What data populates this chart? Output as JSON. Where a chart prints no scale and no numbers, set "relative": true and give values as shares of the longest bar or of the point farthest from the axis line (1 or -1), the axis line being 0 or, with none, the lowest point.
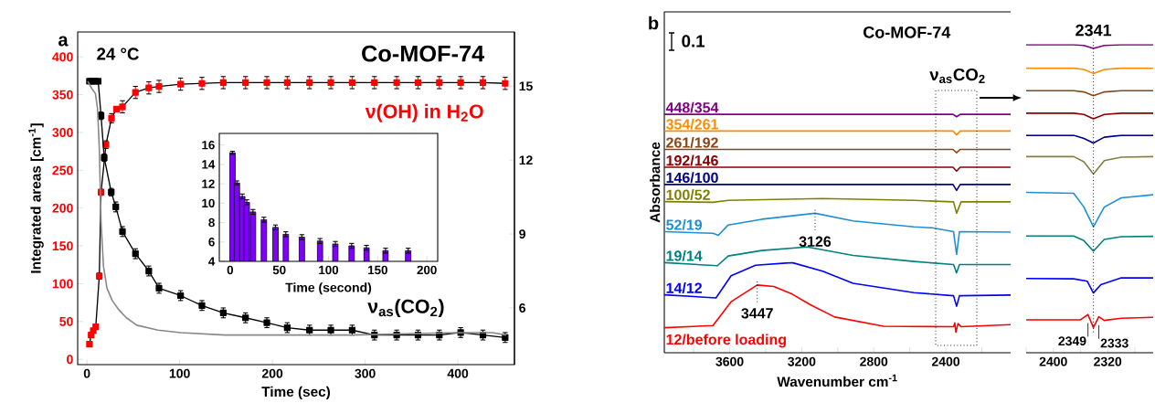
{
  "chart_data": [
    {
      "type": "line",
      "title": "Co-MOF-74",
      "xlabel": "Time (sec)",
      "ylabel": "Integrated areas [cm$^{-1}$]",
      "annotations": [
        "a",
        "24 °C"
      ],
      "marker": "square",
      "xlim": [
        -10,
        461
      ],
      "xticks": [
        0,
        100,
        200,
        300,
        400
      ],
      "ylim": [
        -7,
        433
      ],
      "yticks": [
        0,
        50,
        100,
        150,
        200,
        250,
        300,
        350,
        400
      ],
      "y2lim": [
        3.7,
        17.2
      ],
      "y2ticks": [
        6,
        9,
        12,
        15
      ],
      "series": [
        {
          "name": "ν(OH) in H$_{2}$O",
          "color": "#ff0000",
          "x": [
            2.7,
            4.5,
            6.8,
            9.5,
            13.3,
            15.2,
            20.5,
            26.5,
            31.8,
            38.3,
            52.3,
            66.7,
            77.7,
            101,
            124,
            147,
            171,
            194,
            216,
            240,
            263,
            286,
            310,
            334,
            357,
            380,
            403,
            427,
            451
          ],
          "values": [
            20,
            32,
            38,
            43,
            110,
            221,
            284,
            319,
            331,
            334,
            353,
            359,
            361,
            364,
            365,
            366,
            366,
            366,
            366,
            366,
            366,
            366,
            366,
            366,
            366,
            366,
            366,
            366,
            365
          ],
          "errors": [
            null,
            null,
            null,
            null,
            4,
            4,
            5,
            6,
            null,
            8,
            8,
            8,
            8,
            8,
            8,
            8,
            8,
            8,
            8,
            8,
            8,
            8,
            8,
            8,
            8,
            8,
            8,
            8,
            8
          ]
        },
        {
          "name": "ν$_{as}$(CO$_{2}$)",
          "color": "#000000",
          "axis": "y2",
          "x": [
            2.7,
            5.3,
            8.3,
            12.1,
            15.2,
            18.6,
            26.2,
            31.1,
            38.3,
            52.3,
            66.7,
            77.7,
            101,
            124,
            147,
            171,
            194,
            216,
            240,
            263,
            286,
            310,
            334,
            357,
            380,
            403,
            427,
            451
          ],
          "values": [
            15.2,
            15.2,
            15.2,
            15.2,
            13.8,
            12.1,
            10.7,
            10.1,
            9.1,
            8.2,
            7.5,
            6.8,
            6.5,
            6.1,
            5.8,
            5.6,
            5.4,
            5.2,
            5.1,
            5.1,
            5.1,
            4.9,
            4.9,
            4.9,
            4.9,
            5.0,
            4.9,
            4.8
          ],
          "errors": [
            null,
            null,
            null,
            null,
            0.15,
            0.15,
            0.15,
            0.2,
            0.2,
            0.2,
            0.2,
            0.2,
            0.2,
            0.2,
            0.2,
            0.2,
            0.2,
            0.2,
            0.2,
            0.2,
            0.2,
            0.2,
            0.2,
            0.2,
            0.2,
            0.2,
            0.2,
            0.2
          ]
        },
        {
          "color": "#888888",
          "axis": "y2",
          "marker": "none",
          "x": [
            0.8,
            5.3,
            9.1,
            11.4,
            13.3,
            15.2,
            17.8,
            21.6,
            27.3,
            34.9,
            42.5,
            53.8,
            76.6,
            101,
            149,
            285,
            399,
            437,
            452
          ],
          "values": [
            15.2,
            14.9,
            14.7,
            14.1,
            12.5,
            9.5,
            7.7,
            6.8,
            6.3,
            5.9,
            5.6,
            5.3,
            5.1,
            5.0,
            4.9,
            4.9,
            5.0,
            5.0,
            4.9
          ]
        }
      ]
    },
    {
      "type": "bar",
      "xlabel": "Time (second)",
      "x": [
        2.4,
        6.9,
        12.3,
        16.9,
        23.2,
        34.3,
        46.1,
        56.6,
        72.9,
        91.3,
        107,
        123.5,
        138.6,
        158,
        181
      ],
      "values": [
        15.2,
        12.1,
        10.7,
        10.1,
        9.1,
        8.3,
        7.5,
        6.8,
        6.5,
        6.1,
        5.8,
        5.6,
        5.4,
        5.1,
        5.1
      ],
      "errors": [
        0.15,
        0.2,
        0.25,
        0.25,
        0.25,
        0.25,
        0.25,
        0.25,
        0.25,
        0.25,
        0.25,
        0.25,
        0.25,
        0.25,
        0.25
      ],
      "color": "#7f00ff",
      "xlim": [
        -11,
        211
      ],
      "xticks": [
        0,
        50,
        100,
        150,
        200
      ],
      "ylim": [
        4,
        17.2
      ],
      "yticks": [
        4,
        6,
        8,
        10,
        12,
        14,
        16
      ]
    },
    {
      "type": "line",
      "relative": true,
      "title": "Co-MOF-74",
      "xlabel": "Wavenumber cm$^{-1}$",
      "ylabel": "Absorbance",
      "annotations": [
        "b",
        "0.1",
        "ν$_{as}$CO$_{2}$",
        {
          "text": "3126",
          "x": 3126,
          "y": 0.585
        },
        {
          "text": "3447",
          "x": 3447,
          "y": 0.284
        }
      ],
      "xlim": [
        3963,
        2040
      ],
      "xticks": [
        {
          "value": 3800,
          "label": null
        },
        3600,
        {
          "value": 3400,
          "label": null
        },
        3200,
        {
          "value": 3000,
          "label": null
        },
        2800,
        {
          "value": 2600,
          "label": null
        },
        2400,
        {
          "value": 2200,
          "label": null
        }
      ],
      "series": [
        {
          "name": "448/354",
          "color": "#800080",
          "x": [
            3963,
            2360,
            2340,
            2320,
            2040
          ],
          "values": [
            1.0,
            1.0,
            0.99,
            1.0,
            1.0
          ]
        },
        {
          "name": "354/261",
          "color": "#ff8c00",
          "x": [
            3963,
            2360,
            2340,
            2320,
            2040
          ],
          "values": [
            0.93,
            0.93,
            0.914,
            0.93,
            0.93
          ]
        },
        {
          "name": "261/192",
          "color": "#8b4513",
          "x": [
            3963,
            2360,
            2340,
            2320,
            2040
          ],
          "values": [
            0.853,
            0.853,
            0.839,
            0.853,
            0.853
          ]
        },
        {
          "name": "192/146",
          "color": "#8b0000",
          "x": [
            3963,
            2360,
            2340,
            2320,
            2040
          ],
          "values": [
            0.778,
            0.778,
            0.762,
            0.778,
            0.778
          ]
        },
        {
          "name": "146/100",
          "color": "#00008b",
          "x": [
            3963,
            2360,
            2340,
            2320,
            2040
          ],
          "values": [
            0.706,
            0.706,
            0.681,
            0.706,
            0.706
          ]
        },
        {
          "name": "100/52",
          "color": "#808000",
          "x": [
            3963,
            3693,
            3608,
            3084,
            2577,
            2357,
            2340,
            2315,
            2040
          ],
          "values": [
            0.634,
            0.631,
            0.639,
            0.647,
            0.639,
            0.633,
            0.585,
            0.633,
            0.633
          ]
        },
        {
          "name": "52/19",
          "color": "#1e8fd6",
          "x": [
            3963,
            3693,
            3663,
            3608,
            3422,
            3126,
            2915,
            2577,
            2476,
            2357,
            2340,
            2324,
            2040
          ],
          "values": [
            0.508,
            0.501,
            0.493,
            0.536,
            0.56,
            0.585,
            0.553,
            0.528,
            0.524,
            0.508,
            0.412,
            0.508,
            0.506
          ]
        },
        {
          "name": "19/14",
          "color": "#008080",
          "x": [
            3963,
            3668,
            3608,
            3422,
            3169,
            2915,
            2577,
            2357,
            2340,
            2324,
            2040
          ],
          "values": [
            0.378,
            0.365,
            0.406,
            0.429,
            0.444,
            0.408,
            0.383,
            0.37,
            0.335,
            0.37,
            0.37
          ]
        },
        {
          "name": "14/12",
          "color": "#0000ff",
          "x": [
            3963,
            3676,
            3592,
            3456,
            3253,
            3084,
            2915,
            2577,
            2357,
            2340,
            2324,
            2040
          ],
          "values": [
            0.243,
            0.23,
            0.323,
            0.367,
            0.378,
            0.342,
            0.291,
            0.252,
            0.239,
            0.195,
            0.239,
            0.242
          ]
        },
        {
          "name": "12/before loading",
          "color": "#ff0000",
          "x": [
            3963,
            3693,
            3592,
            3447,
            3355,
            3253,
            3152,
            3017,
            2746,
            2357,
            2350,
            2344,
            2332,
            2315,
            2040
          ],
          "values": [
            0.105,
            0.114,
            0.214,
            0.284,
            0.278,
            0.246,
            0.201,
            0.15,
            0.111,
            0.109,
            0.125,
            0.086,
            0.122,
            0.109,
            0.118
          ]
        }
      ]
    },
    {
      "type": "line",
      "relative": true,
      "annotations": [
        {
          "text": "2349",
          "x": 2349,
          "y": 0.124
        },
        {
          "text": "2333",
          "x": 2333,
          "y": 0.117
        }
      ],
      "ref_lines": [
        {
          "axis": "x",
          "value": 2341,
          "label": "2341",
          "line_style": "dotted"
        }
      ],
      "xlim": [
        2440,
        2253
      ],
      "xticks": [
        {
          "value": 2440,
          "label": null
        },
        2400,
        {
          "value": 2360,
          "label": null
        },
        2320,
        {
          "value": 2280,
          "label": null
        }
      ],
      "series": [
        {
          "color": "#800080",
          "x": [
            2440,
            2370,
            2355,
            2341,
            2325,
            2300,
            2253
          ],
          "values": [
            1.0,
            1.0,
            0.998,
            0.988,
            0.998,
            1.0,
            1.0
          ]
        },
        {
          "color": "#ff8c00",
          "x": [
            2440,
            2370,
            2355,
            2341,
            2325,
            2300,
            2253
          ],
          "values": [
            0.924,
            0.924,
            0.92,
            0.907,
            0.92,
            0.924,
            0.924
          ]
        },
        {
          "color": "#8b4513",
          "x": [
            2440,
            2370,
            2355,
            2341,
            2325,
            2300,
            2253
          ],
          "values": [
            0.851,
            0.851,
            0.847,
            0.835,
            0.847,
            0.851,
            0.851
          ]
        },
        {
          "color": "#8b0000",
          "x": [
            2440,
            2370,
            2355,
            2341,
            2325,
            2300,
            2253
          ],
          "values": [
            0.778,
            0.778,
            0.774,
            0.76,
            0.774,
            0.778,
            0.778
          ]
        },
        {
          "color": "#00008b",
          "x": [
            2440,
            2370,
            2355,
            2341,
            2325,
            2300,
            2253
          ],
          "values": [
            0.706,
            0.706,
            0.696,
            0.681,
            0.7,
            0.706,
            0.706
          ]
        },
        {
          "color": "#808040",
          "x": [
            2440,
            2370,
            2355,
            2341,
            2325,
            2300,
            2253
          ],
          "values": [
            0.637,
            0.637,
            0.62,
            0.58,
            0.624,
            0.635,
            0.637
          ]
        },
        {
          "color": "#1e8fd6",
          "x": [
            2440,
            2370,
            2355,
            2341,
            2325,
            2300,
            2253
          ],
          "values": [
            0.521,
            0.518,
            0.473,
            0.409,
            0.473,
            0.503,
            0.513
          ]
        },
        {
          "color": "#008080",
          "x": [
            2440,
            2370,
            2355,
            2341,
            2325,
            2300,
            2253
          ],
          "values": [
            0.379,
            0.379,
            0.364,
            0.33,
            0.368,
            0.377,
            0.378
          ]
        },
        {
          "color": "#0000ff",
          "x": [
            2440,
            2370,
            2350,
            2341,
            2330,
            2300,
            2253
          ],
          "values": [
            0.241,
            0.24,
            0.232,
            0.194,
            0.221,
            0.243,
            0.243
          ]
        },
        {
          "color": "#ff0000",
          "x": [
            2440,
            2360,
            2349,
            2341,
            2333,
            2325,
            2300,
            2253
          ],
          "values": [
            0.107,
            0.107,
            0.124,
            0.082,
            0.117,
            0.105,
            0.112,
            0.115
          ]
        }
      ]
    }
  ]
}
